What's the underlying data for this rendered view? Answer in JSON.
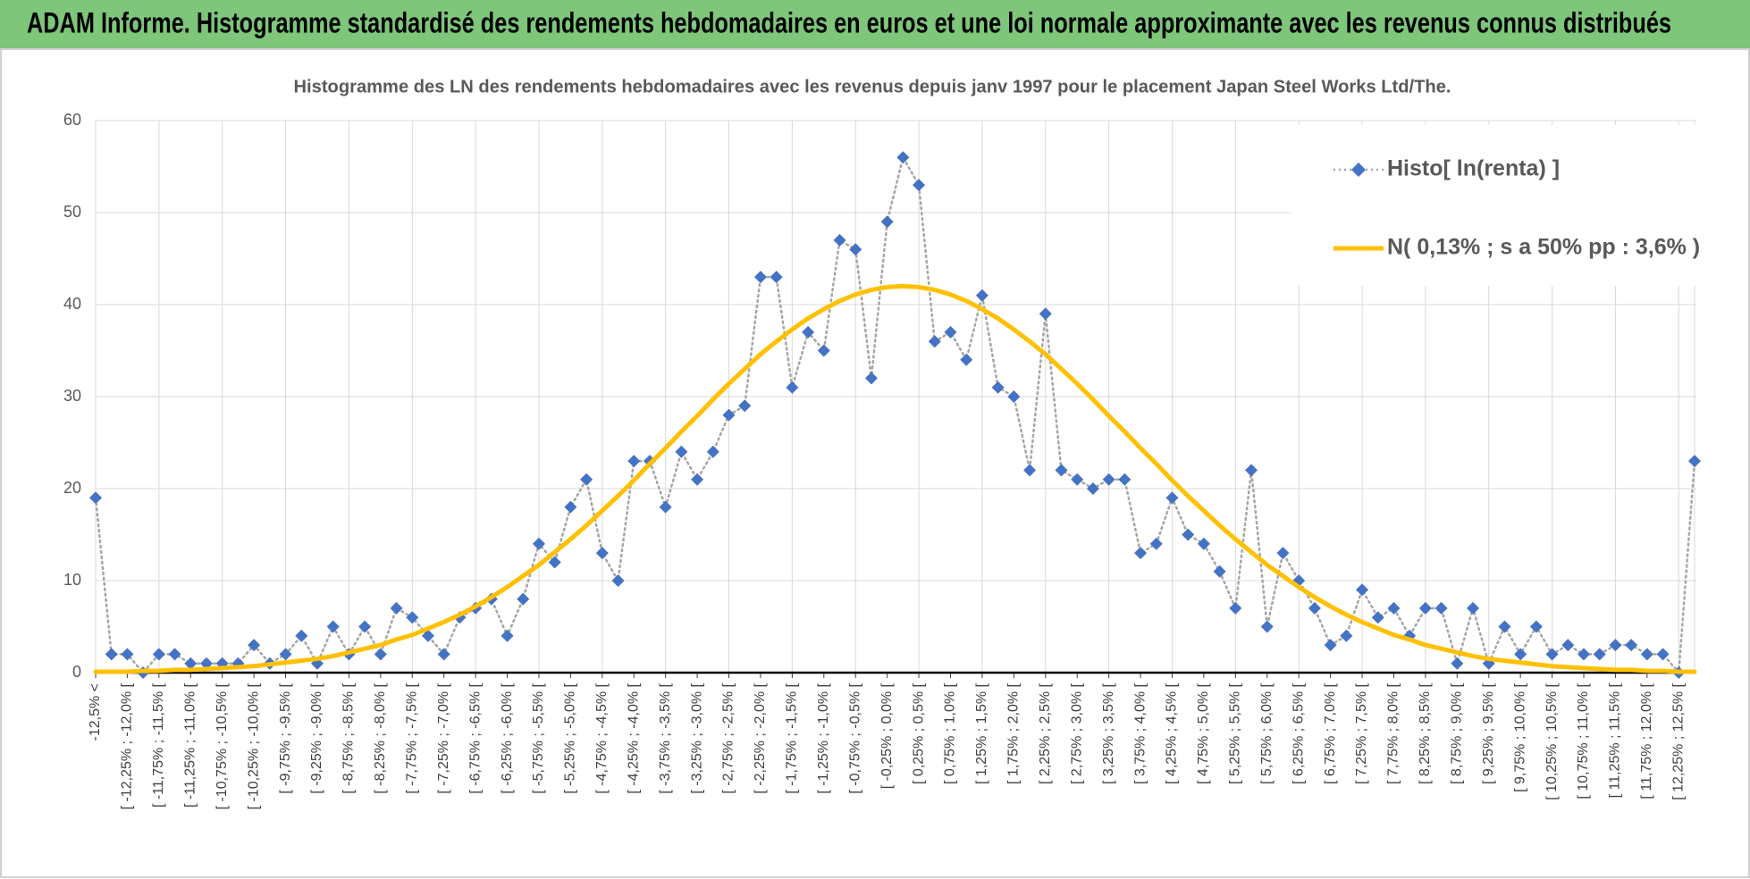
{
  "chart_data": {
    "type": "line",
    "title": "ADAM Informe. Histogramme standardisé des rendements hebdomadaires en euros et une loi normale approximante avec les revenus connus distribués",
    "subtitle": "Histogramme des LN des rendements hebdomadaires avec les revenus depuis janv 1997 pour le placement Japan Steel Works Ltd/The.",
    "categories": [
      "-12,5% <",
      null,
      "[ -12,25% ; -12,0% [",
      null,
      "[ -11,75% ; -11,5% [",
      null,
      "[ -11,25% ; -11,0% [",
      null,
      "[ -10,75% ; -10,5% [",
      null,
      "[ -10,25% ; -10,0% [",
      null,
      "[ -9,75% ; -9,5% [",
      null,
      "[ -9,25% ; -9,0% [",
      null,
      "[ -8,75% ; -8,5% [",
      null,
      "[ -8,25% ; -8,0% [",
      null,
      "[ -7,75% ; -7,5% [",
      null,
      "[ -7,25% ; -7,0% [",
      null,
      "[ -6,75% ; -6,5% [",
      null,
      "[ -6,25% ; -6,0% [",
      null,
      "[ -5,75% ; -5,5% [",
      null,
      "[ -5,25% ; -5,0% [",
      null,
      "[ -4,75% ; -4,5% [",
      null,
      "[ -4,25% ; -4,0% [",
      null,
      "[ -3,75% ; -3,5% [",
      null,
      "[ -3,25% ; -3,0% [",
      null,
      "[ -2,75% ; -2,5% [",
      null,
      "[ -2,25% ; -2,0% [",
      null,
      "[ -1,75% ; -1,5% [",
      null,
      "[ -1,25% ; -1,0% [",
      null,
      "[ -0,75% ; -0,5% [",
      null,
      "[ -0,25% ; 0,0% [",
      null,
      "[ 0,25% ; 0,5% [",
      null,
      "[ 0,75% ; 1,0% [",
      null,
      "[ 1,25% ; 1,5% [",
      null,
      "[ 1,75% ; 2,0% [",
      null,
      "[ 2,25% ; 2,5% [",
      null,
      "[ 2,75% ; 3,0% [",
      null,
      "[ 3,25% ; 3,5% [",
      null,
      "[ 3,75% ; 4,0% [",
      null,
      "[ 4,25% ; 4,5% [",
      null,
      "[ 4,75% ; 5,0% [",
      null,
      "[ 5,25% ; 5,5% [",
      null,
      "[ 5,75% ; 6,0% [",
      null,
      "[ 6,25% ; 6,5% [",
      null,
      "[ 6,75% ; 7,0% [",
      null,
      "[ 7,25% ; 7,5% [",
      null,
      "[ 7,75% ; 8,0% [",
      null,
      "[ 8,25% ; 8,5% [",
      null,
      "[ 8,75% ; 9,0% [",
      null,
      "[ 9,25% ; 9,5% [",
      null,
      "[ 9,75% ; 10,0% [",
      null,
      "[ 10,25% ; 10,5% [",
      null,
      "[ 10,75% ; 11,0% [",
      null,
      "[ 11,25% ; 11,5% [",
      null,
      "[ 11,75% ; 12,0% [",
      null,
      "[ 12,25% ; 12,5% [",
      null
    ],
    "series": [
      {
        "name": "Histo[ ln(renta) ]",
        "color": "#4472c4",
        "marker": "diamond",
        "values": [
          19,
          2,
          2,
          0,
          2,
          2,
          1,
          1,
          1,
          1,
          3,
          1,
          2,
          4,
          1,
          5,
          2,
          5,
          2,
          7,
          6,
          4,
          2,
          6,
          7,
          8,
          4,
          8,
          14,
          12,
          18,
          21,
          13,
          10,
          23,
          23,
          18,
          24,
          21,
          24,
          28,
          29,
          43,
          43,
          31,
          37,
          35,
          47,
          46,
          32,
          49,
          56,
          53,
          36,
          37,
          34,
          41,
          31,
          30,
          22,
          39,
          22,
          21,
          20,
          21,
          21,
          13,
          14,
          19,
          15,
          14,
          11,
          7,
          22,
          5,
          13,
          10,
          7,
          3,
          4,
          9,
          6,
          7,
          4,
          7,
          7,
          1,
          7,
          1,
          5,
          2,
          5,
          2,
          3,
          2,
          2,
          3,
          3,
          2,
          2,
          0,
          23
        ]
      },
      {
        "name": "N( 0,13% ; s a 50% pp : 3,6% )",
        "color": "#ffc000",
        "values": [
          0.1,
          0.1,
          0.1,
          0.2,
          0.2,
          0.3,
          0.3,
          0.4,
          0.5,
          0.6,
          0.7,
          0.9,
          1.1,
          1.3,
          1.5,
          1.8,
          2.2,
          2.6,
          3.0,
          3.6,
          4.1,
          4.8,
          5.5,
          6.3,
          7.2,
          8.2,
          9.3,
          10.5,
          11.7,
          13.1,
          14.5,
          16.0,
          17.6,
          19.2,
          20.9,
          22.7,
          24.4,
          26.2,
          27.9,
          29.7,
          31.4,
          33.0,
          34.6,
          36.0,
          37.3,
          38.5,
          39.5,
          40.4,
          41.1,
          41.6,
          41.9,
          42.0,
          41.9,
          41.6,
          41.1,
          40.4,
          39.5,
          38.5,
          37.3,
          36.0,
          34.6,
          33.0,
          31.4,
          29.7,
          27.9,
          26.2,
          24.4,
          22.7,
          20.9,
          19.2,
          17.6,
          16.0,
          14.5,
          13.1,
          11.7,
          10.5,
          9.3,
          8.2,
          7.2,
          6.3,
          5.5,
          4.8,
          4.1,
          3.6,
          3.0,
          2.6,
          2.2,
          1.8,
          1.5,
          1.3,
          1.1,
          0.9,
          0.7,
          0.6,
          0.5,
          0.4,
          0.3,
          0.3,
          0.2,
          0.2,
          0.1,
          0.1
        ]
      }
    ],
    "ylim": [
      0,
      60
    ],
    "yticks": [
      0,
      10,
      20,
      30,
      40,
      50,
      60
    ],
    "grid": true,
    "legend": "upper right"
  }
}
